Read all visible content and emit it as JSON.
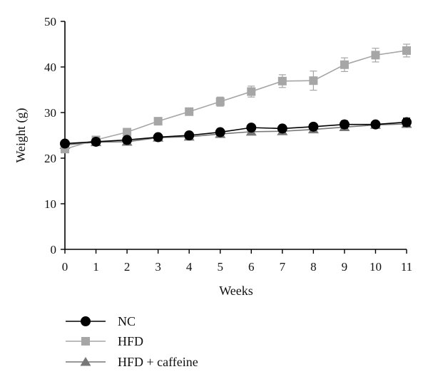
{
  "chart_data": {
    "type": "line",
    "xlabel": "Weeks",
    "ylabel": "Weight (g)",
    "x": [
      0,
      1,
      2,
      3,
      4,
      5,
      6,
      7,
      8,
      9,
      10,
      11
    ],
    "xlim": [
      0,
      11
    ],
    "ylim": [
      0,
      50
    ],
    "xticks": [
      "0",
      "1",
      "2",
      "3",
      "4",
      "5",
      "6",
      "7",
      "8",
      "9",
      "10",
      "11"
    ],
    "yticks": [
      "0",
      "10",
      "20",
      "30",
      "40",
      "50"
    ],
    "grid": false,
    "legend_position": "bottom-left",
    "series": [
      {
        "name": "NC",
        "marker": "circle",
        "color": "#000000",
        "values": [
          23.2,
          23.6,
          24.0,
          24.6,
          25.0,
          25.7,
          26.7,
          26.5,
          26.9,
          27.4,
          27.4,
          27.9
        ],
        "errors": [
          0.4,
          0.4,
          0.5,
          0.5,
          0.5,
          0.5,
          0.6,
          0.6,
          0.6,
          0.8,
          0.7,
          0.9
        ]
      },
      {
        "name": "HFD",
        "marker": "square",
        "color": "#a6a6a6",
        "values": [
          22.0,
          24.0,
          25.7,
          28.1,
          30.2,
          32.4,
          34.6,
          36.9,
          37.0,
          40.5,
          42.6,
          43.6
        ],
        "errors": [
          0.4,
          0.5,
          0.6,
          0.7,
          0.7,
          1.0,
          1.2,
          1.4,
          2.1,
          1.5,
          1.5,
          1.4
        ]
      },
      {
        "name": "HFD + caffeine",
        "marker": "triangle",
        "color": "#777777",
        "values": [
          22.9,
          23.5,
          23.6,
          24.5,
          24.7,
          25.3,
          25.8,
          25.9,
          26.3,
          26.8,
          27.3,
          27.5
        ],
        "errors": [
          0.4,
          0.4,
          0.4,
          0.5,
          0.5,
          0.5,
          0.5,
          0.5,
          0.6,
          0.6,
          0.6,
          0.6
        ]
      }
    ]
  }
}
